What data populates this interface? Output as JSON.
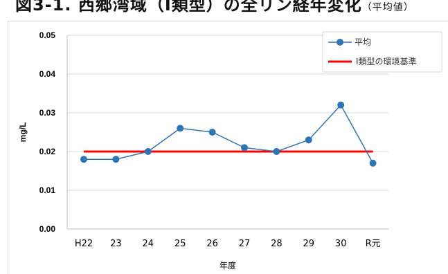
{
  "page_title": "図3-1. 西郷湾域（Ⅰ類型）の全リン経年変化",
  "page_title_suffix": "（平均値）",
  "chart_data": {
    "type": "line",
    "title": "",
    "xlabel": "年度",
    "ylabel": "mg/L",
    "categories": [
      "H22",
      "23",
      "24",
      "25",
      "26",
      "27",
      "28",
      "29",
      "30",
      "R元"
    ],
    "ylim": [
      0,
      0.05
    ],
    "yticks": [
      "0.00",
      "0.01",
      "0.02",
      "0.03",
      "0.04",
      "0.05"
    ],
    "grid": true,
    "legend_position": "top-right",
    "series": [
      {
        "name": "平均",
        "color": "#2e75b6",
        "marker": "circle",
        "values": [
          0.018,
          0.018,
          0.02,
          0.026,
          0.025,
          0.021,
          0.02,
          0.023,
          0.032,
          0.017
        ]
      }
    ],
    "reference_lines": [
      {
        "name": "Ⅰ類型の環境基準",
        "color": "#ff0000",
        "value": 0.02
      }
    ]
  }
}
